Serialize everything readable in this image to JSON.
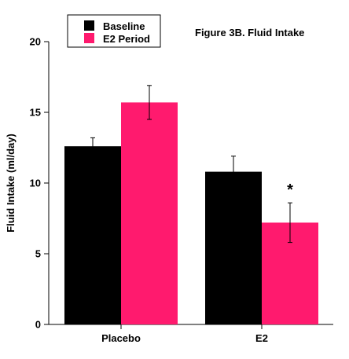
{
  "chart_data": {
    "type": "bar",
    "title": "Figure 3B.  Fluid Intake",
    "xlabel": "",
    "ylabel": "Fluid Intake (ml/day)",
    "ylim": [
      0,
      20
    ],
    "yticks": [
      "0",
      "5",
      "10",
      "15",
      "20"
    ],
    "categories": [
      "Placebo",
      "E2"
    ],
    "series": [
      {
        "name": "Baseline",
        "color": "#000000",
        "values": [
          12.6,
          10.8
        ],
        "errors": [
          0.6,
          1.1
        ]
      },
      {
        "name": "E2 Period",
        "color": "#ff1a6e",
        "values": [
          15.7,
          7.2
        ],
        "errors": [
          1.2,
          1.4
        ]
      }
    ],
    "legend_position": "top-left",
    "annotations": [
      {
        "text": "*",
        "category": "E2",
        "series": "E2 Period"
      }
    ],
    "grid": false
  }
}
